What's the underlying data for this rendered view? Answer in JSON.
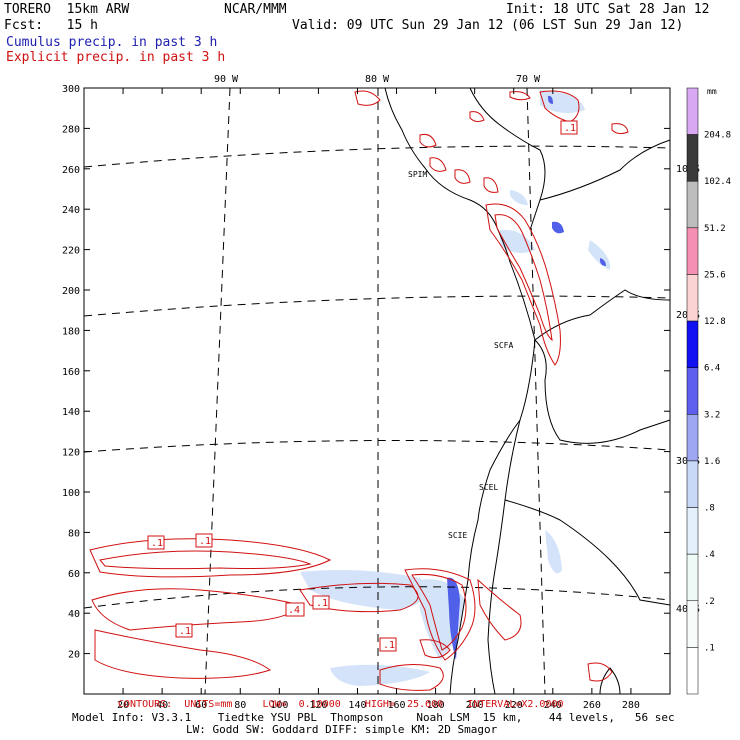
{
  "header": {
    "model": "TORERO  15km ARW",
    "org": "NCAR/MMM",
    "init": "Init: 18 UTC Sat 28 Jan 12",
    "fcst": "Fcst:   15 h",
    "valid": "Valid: 09 UTC Sun 29 Jan 12 (06 LST Sun 29 Jan 12)",
    "cumulus": "Cumulus precip. in past 3 h",
    "explicit": "Explicit precip. in past 3 h"
  },
  "colors": {
    "cumulus_text": "#2020b0",
    "explicit_contour": "#d01010",
    "coast": "#000000"
  },
  "axes": {
    "y_ticks": [
      "20",
      "40",
      "60",
      "80",
      "100",
      "120",
      "140",
      "160",
      "180",
      "200",
      "220",
      "240",
      "260",
      "280",
      "300"
    ],
    "x_ticks": [
      "20",
      "40",
      "60",
      "80",
      "100",
      "120",
      "140",
      "160",
      "180",
      "200",
      "220",
      "240",
      "260",
      "280"
    ],
    "lon_labels": [
      "90 W",
      "80 W",
      "70 W"
    ],
    "lat_labels": [
      "10 S",
      "20 S",
      "30 S",
      "40 S"
    ]
  },
  "stations": [
    "SPIM",
    "SCFA",
    "SCEL",
    "SCIE"
  ],
  "contour_labels": [
    ".1",
    ".1",
    ".1",
    ".4",
    ".1",
    ".1",
    ".1",
    ".1"
  ],
  "colorbar": {
    "unit": "mm",
    "levels": [
      "204.8",
      "102.4",
      "51.2",
      "25.6",
      "12.8",
      "6.4",
      "3.2",
      "1.6",
      ".8",
      ".4",
      ".2",
      ".1"
    ],
    "colors": [
      "#d9a8f2",
      "#3a3a3a",
      "#bdbdbd",
      "#f58fb4",
      "#fbd3d3",
      "#1010f0",
      "#5f5fef",
      "#9ea7f2",
      "#c8d8f7",
      "#e4f0fb",
      "#eefaf6",
      "#f7fcfb",
      "#ffffff"
    ]
  },
  "footer": {
    "contours": "CONTOURS:  UNITS=mm     LOW=  0.10000    HIGH=  25.600    INTERVAL=X2.0000",
    "model_info": "Model Info: V3.3.1    Tiedtke YSU PBL  Thompson     Noah LSM  15 km,    44 levels,   56 sec",
    "model_info2": "LW: Godd SW: Goddard DIFF: simple KM: 2D Smagor"
  }
}
